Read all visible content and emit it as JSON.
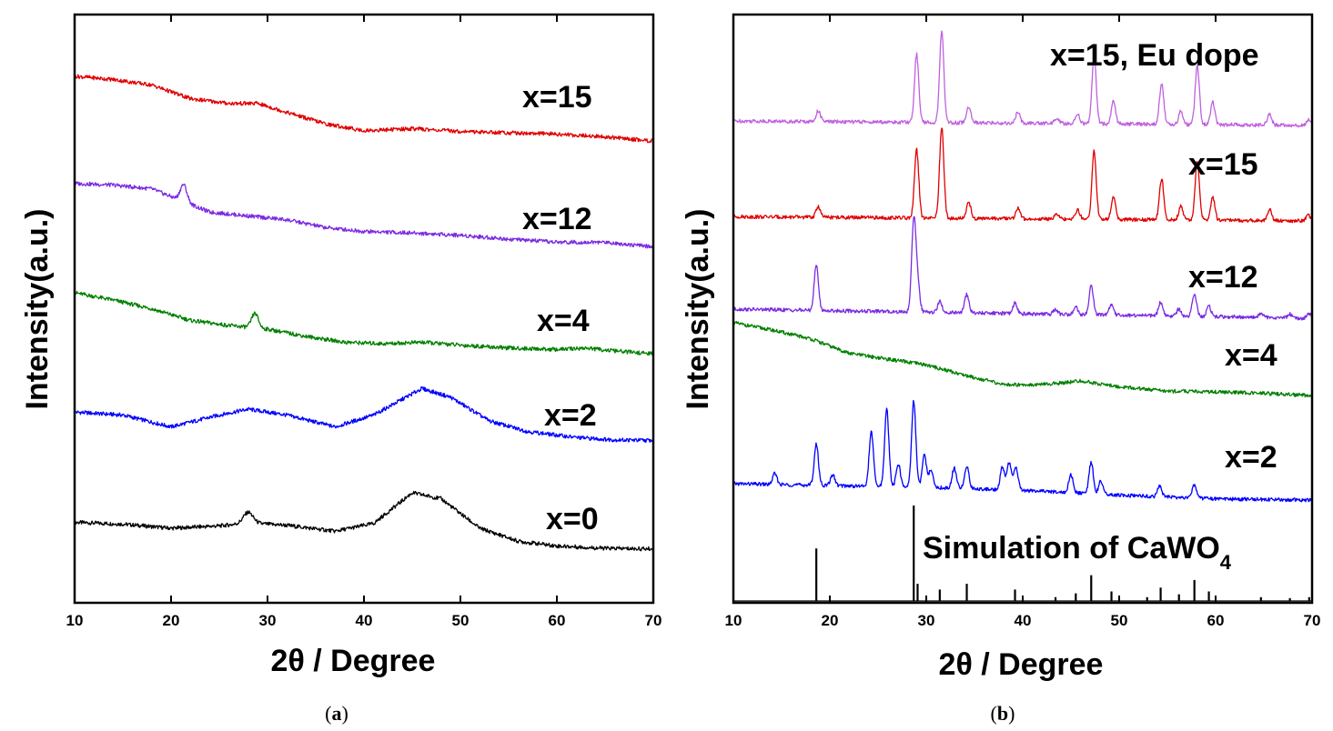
{
  "chart_data": [
    {
      "type": "line",
      "panel": "a",
      "caption_prefix": "(",
      "caption_letter": "a",
      "caption_suffix": ")",
      "xlabel": "2θ / Degree",
      "ylabel": "Intensity(a.u.)",
      "xlim": [
        10,
        70
      ],
      "xticks": [
        10,
        20,
        30,
        40,
        50,
        60,
        70
      ],
      "y_ticks_shown": false,
      "series": [
        {
          "name": "x=0",
          "color": "#000000",
          "offset": 0,
          "profile": [
            [
              10,
              0.5
            ],
            [
              15,
              0.47
            ],
            [
              20,
              0.4
            ],
            [
              25,
              0.44
            ],
            [
              28,
              0.49
            ],
            [
              32,
              0.45
            ],
            [
              37,
              0.35
            ],
            [
              41,
              0.48
            ],
            [
              45,
              1.0
            ],
            [
              48,
              0.9
            ],
            [
              52,
              0.4
            ],
            [
              56,
              0.18
            ],
            [
              60,
              0.1
            ],
            [
              65,
              0.06
            ],
            [
              70,
              0.05
            ]
          ],
          "peaks": [
            [
              28,
              0.18,
              0.5
            ]
          ]
        },
        {
          "name": "x=2",
          "color": "#0000ff",
          "offset": 1,
          "profile": [
            [
              10,
              0.55
            ],
            [
              15,
              0.5
            ],
            [
              20,
              0.3
            ],
            [
              25,
              0.5
            ],
            [
              28,
              0.6
            ],
            [
              32,
              0.5
            ],
            [
              37,
              0.3
            ],
            [
              41,
              0.5
            ],
            [
              46,
              0.95
            ],
            [
              49,
              0.8
            ],
            [
              53,
              0.4
            ],
            [
              57,
              0.22
            ],
            [
              62,
              0.12
            ],
            [
              66,
              0.08
            ],
            [
              70,
              0.07
            ]
          ],
          "peaks": []
        },
        {
          "name": "x=4",
          "color": "#008000",
          "offset": 2,
          "profile": [
            [
              10,
              0.9
            ],
            [
              14,
              0.8
            ],
            [
              18,
              0.68
            ],
            [
              22,
              0.52
            ],
            [
              26,
              0.45
            ],
            [
              30,
              0.4
            ],
            [
              34,
              0.3
            ],
            [
              38,
              0.22
            ],
            [
              42,
              0.2
            ],
            [
              46,
              0.22
            ],
            [
              50,
              0.18
            ],
            [
              55,
              0.14
            ],
            [
              60,
              0.12
            ],
            [
              63,
              0.14
            ],
            [
              66,
              0.1
            ],
            [
              70,
              0.06
            ]
          ],
          "peaks": [
            [
              28.7,
              0.2,
              0.35
            ]
          ]
        },
        {
          "name": "x=12",
          "color": "#7b2be2",
          "offset": 3,
          "profile": [
            [
              10,
              0.92
            ],
            [
              14,
              0.9
            ],
            [
              18,
              0.85
            ],
            [
              20,
              0.75
            ],
            [
              24,
              0.55
            ],
            [
              28,
              0.5
            ],
            [
              32,
              0.45
            ],
            [
              36,
              0.35
            ],
            [
              40,
              0.3
            ],
            [
              45,
              0.28
            ],
            [
              50,
              0.25
            ],
            [
              55,
              0.2
            ],
            [
              60,
              0.16
            ],
            [
              65,
              0.16
            ],
            [
              70,
              0.1
            ]
          ],
          "peaks": [
            [
              21.3,
              0.22,
              0.35
            ]
          ]
        },
        {
          "name": "x=15",
          "color": "#e00000",
          "offset": 4,
          "profile": [
            [
              10,
              0.95
            ],
            [
              14,
              0.9
            ],
            [
              18,
              0.82
            ],
            [
              22,
              0.62
            ],
            [
              26,
              0.55
            ],
            [
              29,
              0.55
            ],
            [
              32,
              0.42
            ],
            [
              36,
              0.25
            ],
            [
              40,
              0.15
            ],
            [
              45,
              0.18
            ],
            [
              50,
              0.14
            ],
            [
              55,
              0.12
            ],
            [
              60,
              0.1
            ],
            [
              65,
              0.06
            ],
            [
              70,
              0.0
            ]
          ],
          "peaks": []
        }
      ]
    },
    {
      "type": "line",
      "panel": "b",
      "caption_prefix": "(",
      "caption_letter": "b",
      "caption_suffix": ")",
      "xlabel": "2θ / Degree",
      "ylabel": "Intensity(a.u.)",
      "xlim": [
        10,
        70
      ],
      "xticks": [
        10,
        20,
        30,
        40,
        50,
        60,
        70
      ],
      "y_ticks_shown": false,
      "simulation": {
        "name_main": "Simulation of CaWO",
        "name_sub": "4",
        "color": "#000000",
        "peaks": [
          [
            18.6,
            0.55
          ],
          [
            28.7,
            1.0
          ],
          [
            29.1,
            0.18
          ],
          [
            31.4,
            0.12
          ],
          [
            34.2,
            0.18
          ],
          [
            39.2,
            0.12
          ],
          [
            43.4,
            0.04
          ],
          [
            45.5,
            0.08
          ],
          [
            47.1,
            0.27
          ],
          [
            49.2,
            0.1
          ],
          [
            52.9,
            0.04
          ],
          [
            54.3,
            0.14
          ],
          [
            56.2,
            0.07
          ],
          [
            57.8,
            0.22
          ],
          [
            59.3,
            0.1
          ],
          [
            64.7,
            0.04
          ],
          [
            67.7,
            0.03
          ],
          [
            69.7,
            0.04
          ]
        ]
      },
      "series": [
        {
          "name": "x=2",
          "color": "#0000ff",
          "offset": 1,
          "profile": [
            [
              10,
              0.5
            ],
            [
              20,
              0.45
            ],
            [
              30,
              0.4
            ],
            [
              40,
              0.32
            ],
            [
              50,
              0.18
            ],
            [
              60,
              0.08
            ],
            [
              70,
              0.05
            ]
          ],
          "peaks": [
            [
              14.3,
              0.12
            ],
            [
              18.6,
              0.45
            ],
            [
              20.3,
              0.12
            ],
            [
              24.3,
              0.6
            ],
            [
              25.9,
              0.85
            ],
            [
              27.1,
              0.25
            ],
            [
              28.7,
              0.95
            ],
            [
              29.8,
              0.35
            ],
            [
              30.5,
              0.2
            ],
            [
              32.9,
              0.22
            ],
            [
              34.2,
              0.25
            ],
            [
              37.9,
              0.25
            ],
            [
              38.6,
              0.3
            ],
            [
              39.3,
              0.25
            ],
            [
              45,
              0.2
            ],
            [
              47.1,
              0.35
            ],
            [
              48.1,
              0.15
            ],
            [
              54.2,
              0.12
            ],
            [
              57.8,
              0.15
            ]
          ]
        },
        {
          "name": "x=4",
          "color": "#008000",
          "offset": 2,
          "profile": [
            [
              10,
              1.0
            ],
            [
              14,
              0.9
            ],
            [
              18,
              0.78
            ],
            [
              22,
              0.58
            ],
            [
              26,
              0.5
            ],
            [
              30,
              0.42
            ],
            [
              34,
              0.28
            ],
            [
              38,
              0.15
            ],
            [
              42,
              0.15
            ],
            [
              46,
              0.2
            ],
            [
              50,
              0.12
            ],
            [
              55,
              0.06
            ],
            [
              60,
              0.05
            ],
            [
              65,
              0.03
            ],
            [
              70,
              0.0
            ]
          ],
          "peaks": []
        },
        {
          "name": "x=12",
          "color": "#7b2be2",
          "offset": 3,
          "profile": [
            [
              10,
              0.1
            ],
            [
              70,
              0.0
            ]
          ],
          "peaks": [
            [
              18.6,
              0.5
            ],
            [
              28.7,
              1.0
            ],
            [
              29.1,
              0.3
            ],
            [
              31.4,
              0.12
            ],
            [
              34.2,
              0.2
            ],
            [
              39.2,
              0.12
            ],
            [
              43.4,
              0.05
            ],
            [
              45.5,
              0.08
            ],
            [
              47.1,
              0.32
            ],
            [
              49.2,
              0.12
            ],
            [
              54.3,
              0.15
            ],
            [
              56.2,
              0.08
            ],
            [
              57.8,
              0.25
            ],
            [
              59.3,
              0.12
            ],
            [
              64.7,
              0.05
            ],
            [
              67.7,
              0.04
            ],
            [
              69.7,
              0.05
            ]
          ]
        },
        {
          "name": "x=15",
          "color": "#e00000",
          "offset": 4,
          "profile": [
            [
              10,
              0.05
            ],
            [
              70,
              0.0
            ]
          ],
          "peaks": [
            [
              18.8,
              0.12
            ],
            [
              29.0,
              0.75
            ],
            [
              31.6,
              1.0
            ],
            [
              34.4,
              0.18
            ],
            [
              39.5,
              0.12
            ],
            [
              43.5,
              0.06
            ],
            [
              45.7,
              0.1
            ],
            [
              47.4,
              0.75
            ],
            [
              49.4,
              0.25
            ],
            [
              54.4,
              0.45
            ],
            [
              56.4,
              0.15
            ],
            [
              58.1,
              0.65
            ],
            [
              59.7,
              0.25
            ],
            [
              65.6,
              0.12
            ],
            [
              69.6,
              0.06
            ]
          ]
        },
        {
          "name": "x=15, Eu dope",
          "color": "#c060e0",
          "offset": 5,
          "profile": [
            [
              10,
              0.05
            ],
            [
              70,
              0.0
            ]
          ],
          "peaks": [
            [
              18.8,
              0.12
            ],
            [
              29.0,
              0.75
            ],
            [
              31.6,
              1.0
            ],
            [
              34.4,
              0.18
            ],
            [
              39.5,
              0.12
            ],
            [
              43.5,
              0.06
            ],
            [
              45.7,
              0.1
            ],
            [
              47.4,
              0.75
            ],
            [
              49.4,
              0.25
            ],
            [
              54.4,
              0.45
            ],
            [
              56.4,
              0.15
            ],
            [
              58.1,
              0.65
            ],
            [
              59.7,
              0.25
            ],
            [
              65.6,
              0.12
            ],
            [
              69.6,
              0.06
            ]
          ]
        }
      ]
    }
  ]
}
